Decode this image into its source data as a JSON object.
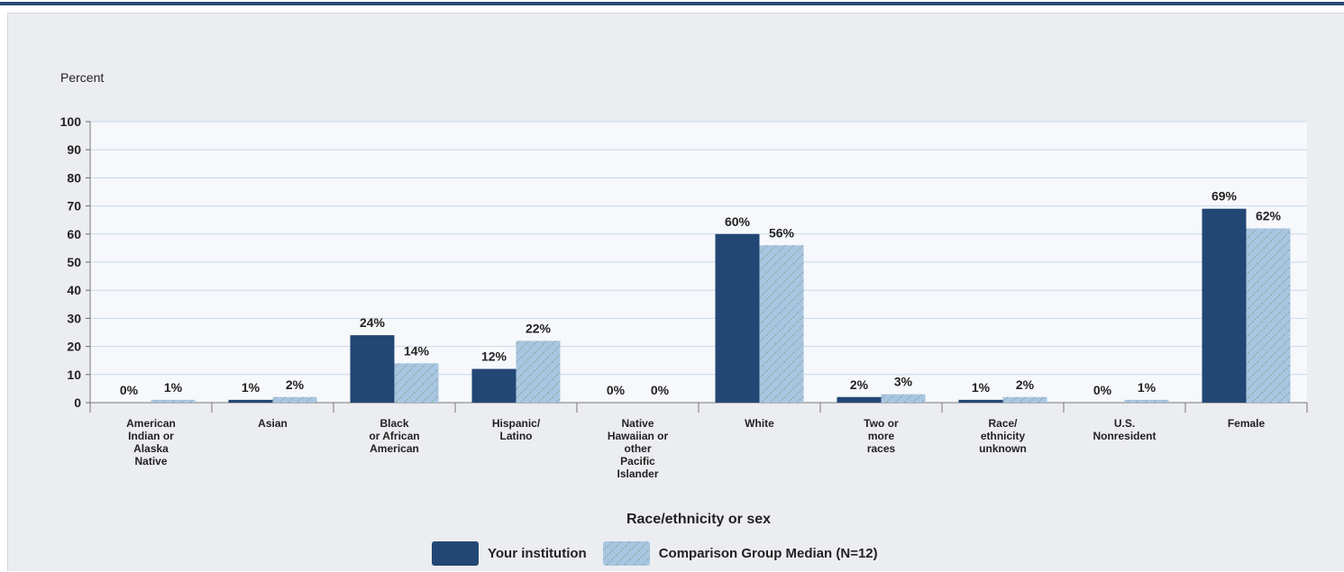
{
  "chart_data": {
    "type": "bar",
    "ylabel": "Percent",
    "xlabel": "Race/ethnicity or sex",
    "ylim": [
      0,
      100
    ],
    "yticks": [
      0,
      10,
      20,
      30,
      40,
      50,
      60,
      70,
      80,
      90,
      100
    ],
    "grid": true,
    "legend_position": "bottom-center",
    "categories": [
      [
        "American",
        "Indian or",
        "Alaska",
        "Native"
      ],
      [
        "Asian"
      ],
      [
        "Black",
        "or African",
        "American"
      ],
      [
        "Hispanic/",
        "Latino"
      ],
      [
        "Native",
        "Hawaiian or",
        "other",
        "Pacific",
        "Islander"
      ],
      [
        "White"
      ],
      [
        "Two or",
        "more",
        "races"
      ],
      [
        "Race/",
        "ethnicity",
        "unknown"
      ],
      [
        "U.S.",
        "Nonresident"
      ],
      [
        "Female"
      ]
    ],
    "series": [
      {
        "name": "Your institution",
        "color": "#234774",
        "pattern": "solid",
        "values": [
          0,
          1,
          24,
          12,
          0,
          60,
          2,
          1,
          0,
          69
        ],
        "labels": [
          "0%",
          "1%",
          "24%",
          "12%",
          "0%",
          "60%",
          "2%",
          "1%",
          "0%",
          "69%"
        ]
      },
      {
        "name": "Comparison Group Median (N=12)",
        "color": "#a8c6e2",
        "pattern": "hatched",
        "values": [
          1,
          2,
          14,
          22,
          0,
          56,
          3,
          2,
          1,
          62
        ],
        "labels": [
          "1%",
          "2%",
          "14%",
          "22%",
          "0%",
          "56%",
          "3%",
          "2%",
          "1%",
          "62%"
        ]
      }
    ]
  }
}
